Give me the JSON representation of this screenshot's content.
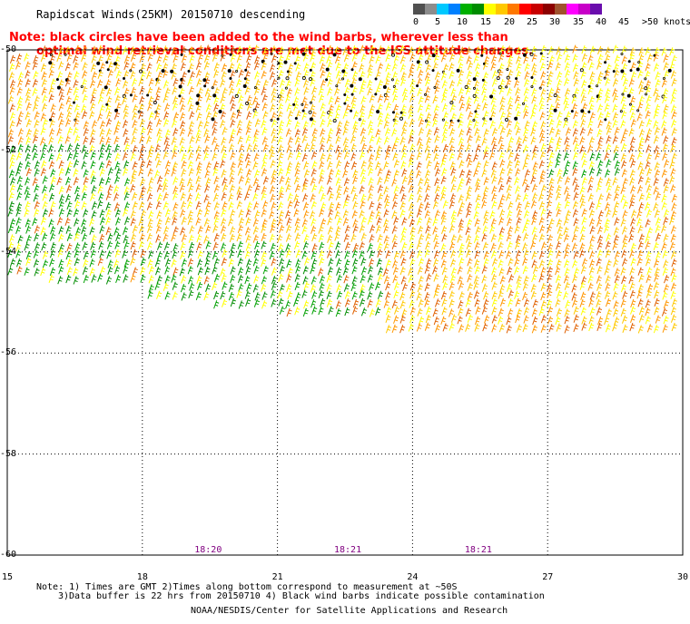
{
  "header": {
    "title": "Rapidscat Winds(25KM) 20150710 descending"
  },
  "note": {
    "line1": "Note: black circles have been added to the wind barbs, wherever less than",
    "line2": "optimal wind retrieval conditions are met due to the ISS attitude changes."
  },
  "legend": {
    "labels": [
      "0",
      "5",
      "10",
      "15",
      "20",
      "25",
      "30",
      "35",
      "40",
      "45",
      ">50 knots"
    ],
    "colors": [
      "#505050",
      "#8c8c8c",
      "#00c8ff",
      "#0080ff",
      "#00b000",
      "#008c00",
      "#ffff00",
      "#ffc800",
      "#ff7800",
      "#ff0000",
      "#c80000",
      "#8c0000",
      "#a0522d",
      "#ff00ff",
      "#c800c8",
      "#6a0dad"
    ]
  },
  "axes": {
    "x_ticks": [
      "15",
      "18",
      "21",
      "24",
      "27",
      "30"
    ],
    "y_ticks": [
      "-50",
      "-52",
      "-54",
      "-56",
      "-58",
      "-60"
    ],
    "xlim": [
      15,
      30
    ],
    "ylim": [
      -60,
      -50
    ]
  },
  "pass_times": [
    {
      "label": "18:20",
      "lon": 19.4
    },
    {
      "label": "18:21",
      "lon": 22.5
    },
    {
      "label": "18:21",
      "lon": 25.4
    }
  ],
  "footer": {
    "line1": "Note: 1) Times are GMT 2)Times along bottom correspond to measurement at ~50S",
    "line2": "3)Data buffer is 22 hrs from 20150710 4) Black wind barbs indicate possible contamination",
    "line3": "NOAA/NESDIS/Center for Satellite Applications and Research"
  }
}
